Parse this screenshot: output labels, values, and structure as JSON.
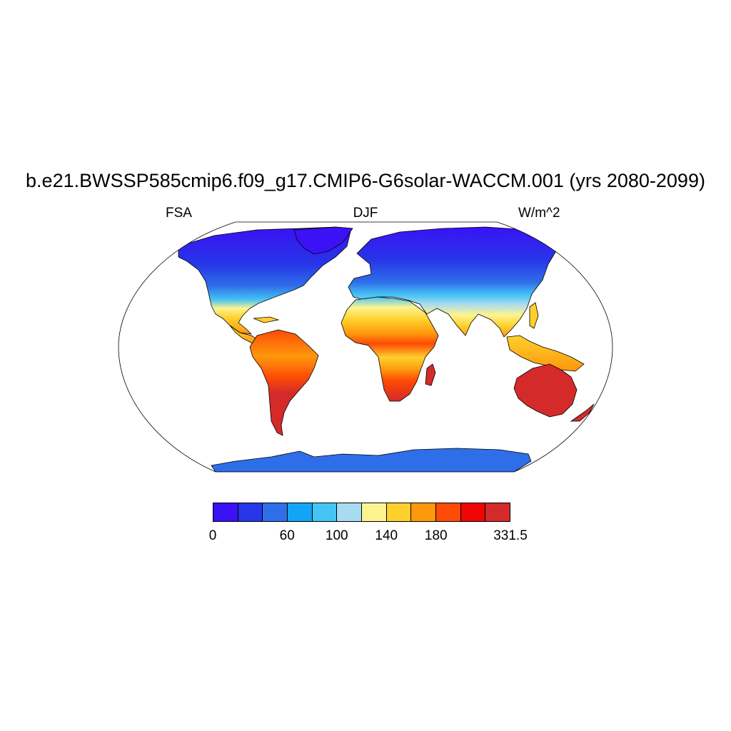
{
  "title": "b.e21.BWSSP585cmip6.f09_g17.CMIP6-G6solar-WACCM.001 (yrs 2080-2099)",
  "left_string": "FSA",
  "center_string": "DJF",
  "right_string": "W/m^2",
  "colorbar": {
    "colors": [
      "#3a12f5",
      "#2636e8",
      "#2e6ee8",
      "#12a4f7",
      "#46c4f5",
      "#a8daf0",
      "#fdf491",
      "#ffd02b",
      "#fe980c",
      "#fd4b06",
      "#ef0505",
      "#d42a2a"
    ],
    "tick_labels": [
      "0",
      "60",
      "100",
      "140",
      "180",
      "331.5"
    ],
    "tick_box_edges": [
      0,
      3,
      5,
      7,
      9,
      12
    ]
  },
  "map": {
    "variable": "FSA",
    "season": "DJF",
    "units": "W/m^2",
    "projection": "Robinson",
    "land_only": true,
    "regions": [
      {
        "name": "North America",
        "band": "0-60 north to 100-180 south"
      },
      {
        "name": "South America",
        "band": "140-331.5"
      },
      {
        "name": "Europe / Asia",
        "band": "0-100 north to 180 south"
      },
      {
        "name": "Africa",
        "band": "60-331.5"
      },
      {
        "name": "Australia",
        "band": "331.5"
      },
      {
        "name": "Antarctica",
        "band": "40-100"
      }
    ]
  }
}
